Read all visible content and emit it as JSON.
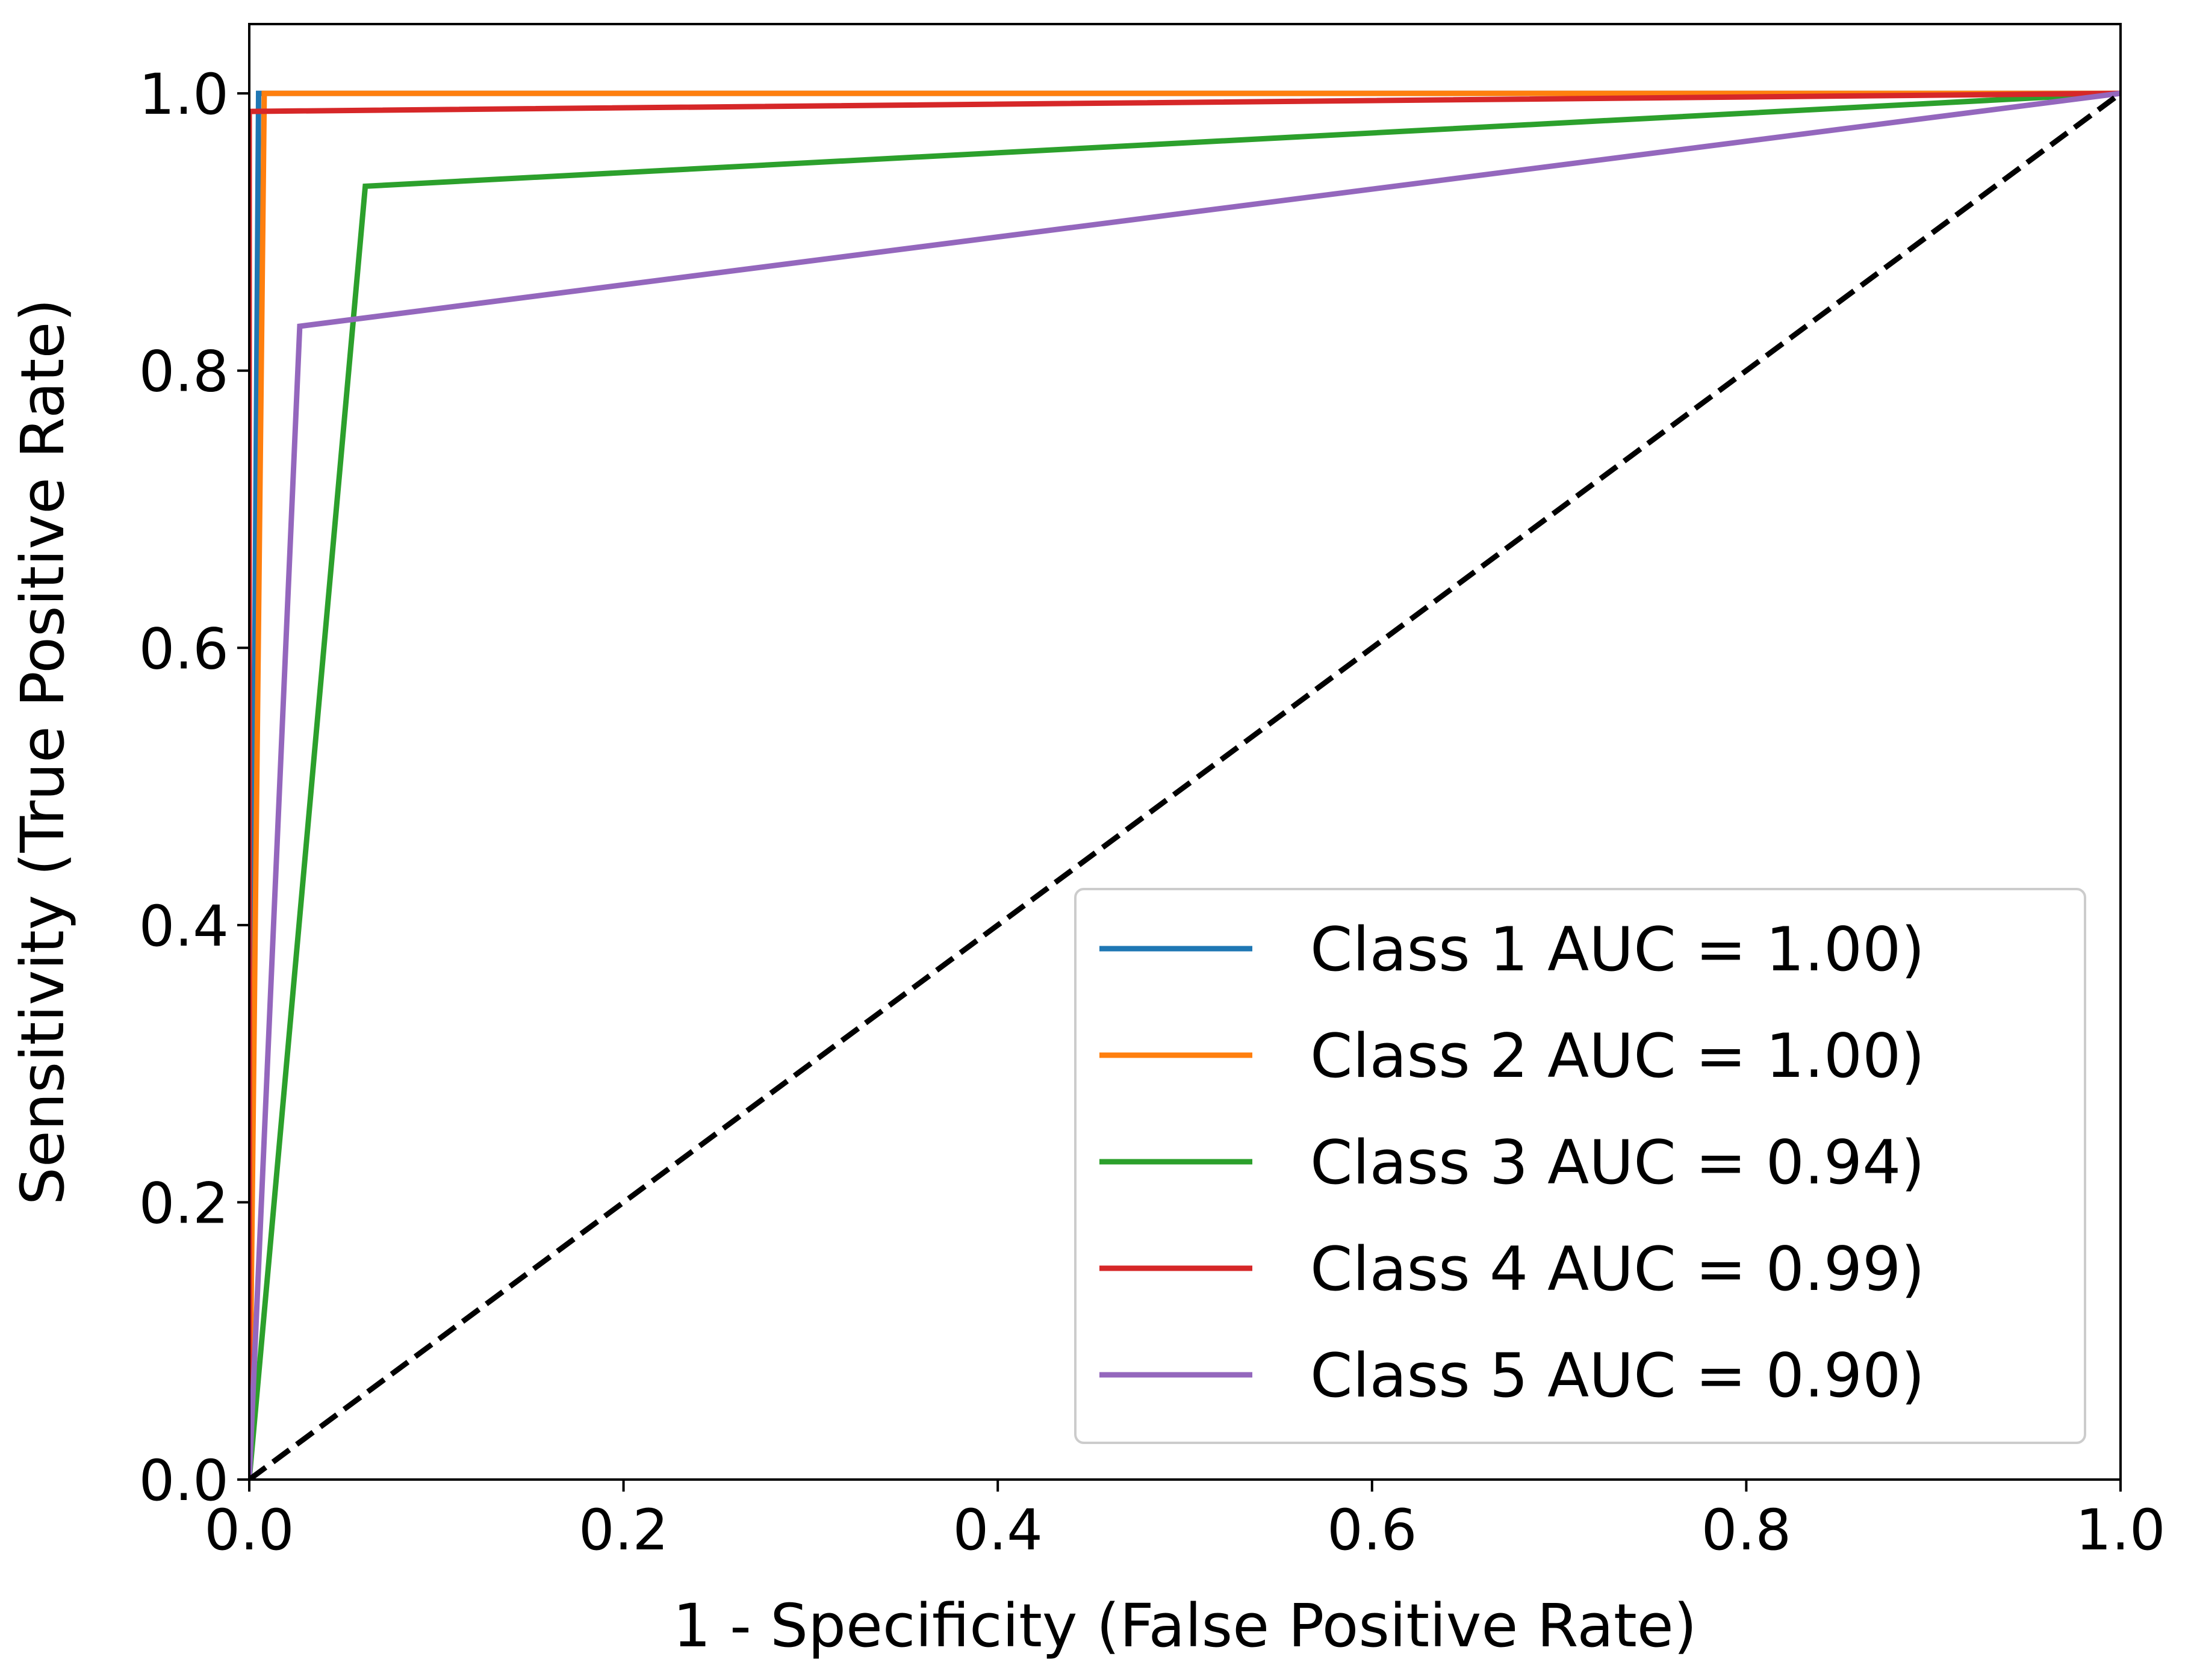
{
  "chart_data": {
    "type": "line",
    "title": "",
    "xlabel": "1 - Specificity (False Positive Rate)",
    "ylabel": "Sensitivity (True Positive Rate)",
    "xlim": [
      0.0,
      1.0
    ],
    "ylim": [
      0.0,
      1.05
    ],
    "xticks": [
      "0.0",
      "0.2",
      "0.4",
      "0.6",
      "0.8",
      "1.0"
    ],
    "yticks": [
      "0.0",
      "0.2",
      "0.4",
      "0.6",
      "0.8",
      "1.0"
    ],
    "grid": false,
    "legend_position": "lower-right",
    "series": [
      {
        "name": "Class 1 AUC = 1.00)",
        "color": "#1f77b4",
        "x": [
          0.0,
          0.005,
          1.0
        ],
        "y": [
          0.0,
          1.0,
          1.0
        ]
      },
      {
        "name": "Class 2 AUC = 1.00)",
        "color": "#ff7f0e",
        "x": [
          0.0,
          0.008,
          1.0
        ],
        "y": [
          0.0,
          1.0,
          1.0
        ]
      },
      {
        "name": "Class 3 AUC = 0.94)",
        "color": "#2ca02c",
        "x": [
          0.0,
          0.062,
          1.0
        ],
        "y": [
          0.0,
          0.933,
          1.0
        ]
      },
      {
        "name": "Class 4 AUC = 0.99)",
        "color": "#d62728",
        "x": [
          0.0,
          0.0,
          1.0
        ],
        "y": [
          0.0,
          0.987,
          1.0
        ]
      },
      {
        "name": "Class 5 AUC = 0.90)",
        "color": "#9467bd",
        "x": [
          0.0,
          0.027,
          1.0
        ],
        "y": [
          0.0,
          0.832,
          1.0
        ]
      }
    ],
    "reference_line": {
      "x": [
        0.0,
        1.0
      ],
      "y": [
        0.0,
        1.0
      ],
      "color": "#000000",
      "style": "dashed"
    }
  }
}
